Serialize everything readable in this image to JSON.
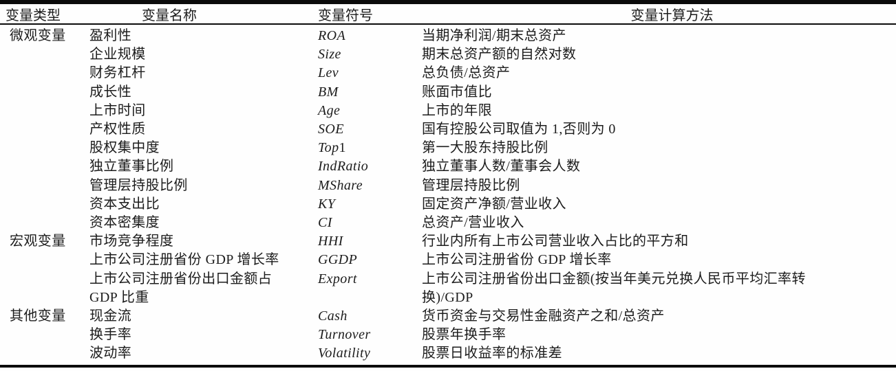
{
  "table": {
    "headers": {
      "type": "变量类型",
      "name": "变量名称",
      "symbol": "变量符号",
      "method": "变量计算方法"
    },
    "rows": [
      {
        "type": "微观变量",
        "name": "盈利性",
        "symbol": "ROA",
        "symbol_plain": "",
        "method": "当期净利润/期末总资产"
      },
      {
        "type": "",
        "name": "企业规模",
        "symbol": "Size",
        "symbol_plain": "",
        "method": "期末总资产额的自然对数"
      },
      {
        "type": "",
        "name": "财务杠杆",
        "symbol": "Lev",
        "symbol_plain": "",
        "method": "总负债/总资产"
      },
      {
        "type": "",
        "name": "成长性",
        "symbol": "BM",
        "symbol_plain": "",
        "method": "账面市值比"
      },
      {
        "type": "",
        "name": "上市时间",
        "symbol": "Age",
        "symbol_plain": "",
        "method": "上市的年限"
      },
      {
        "type": "",
        "name": "产权性质",
        "symbol": "SOE",
        "symbol_plain": "",
        "method": "国有控股公司取值为 1,否则为 0"
      },
      {
        "type": "",
        "name": "股权集中度",
        "symbol": "Top",
        "symbol_plain": "1",
        "method": "第一大股东持股比例"
      },
      {
        "type": "",
        "name": "独立董事比例",
        "symbol": "IndRatio",
        "symbol_plain": "",
        "method": "独立董事人数/董事会人数"
      },
      {
        "type": "",
        "name": "管理层持股比例",
        "symbol": "MShare",
        "symbol_plain": "",
        "method": "管理层持股比例"
      },
      {
        "type": "",
        "name": "资本支出比",
        "symbol": "KY",
        "symbol_plain": "",
        "method": "固定资产净额/营业收入"
      },
      {
        "type": "",
        "name": "资本密集度",
        "symbol": "CI",
        "symbol_plain": "",
        "method": "总资产/营业收入"
      },
      {
        "type": "宏观变量",
        "name": "市场竞争程度",
        "symbol": "HHI",
        "symbol_plain": "",
        "method": "行业内所有上市公司营业收入占比的平方和"
      },
      {
        "type": "",
        "name": "上市公司注册省份 GDP 增长率",
        "symbol": "GGDP",
        "symbol_plain": "",
        "method": "上市公司注册省份 GDP 增长率"
      },
      {
        "type": "",
        "name": "上市公司注册省份出口金额占\nGDP 比重",
        "symbol": "Export",
        "symbol_plain": "",
        "method": "上市公司注册省份出口金额(按当年美元兑换人民币平均汇率转\n换)/GDP"
      },
      {
        "type": "其他变量",
        "name": "现金流",
        "symbol": "Cash",
        "symbol_plain": "",
        "method": "货币资金与交易性金融资产之和/总资产"
      },
      {
        "type": "",
        "name": "换手率",
        "symbol": "Turnover",
        "symbol_plain": "",
        "method": "股票年换手率"
      },
      {
        "type": "",
        "name": "波动率",
        "symbol": "Volatility",
        "symbol_plain": "",
        "method": "股票日收益率的标准差"
      }
    ]
  }
}
